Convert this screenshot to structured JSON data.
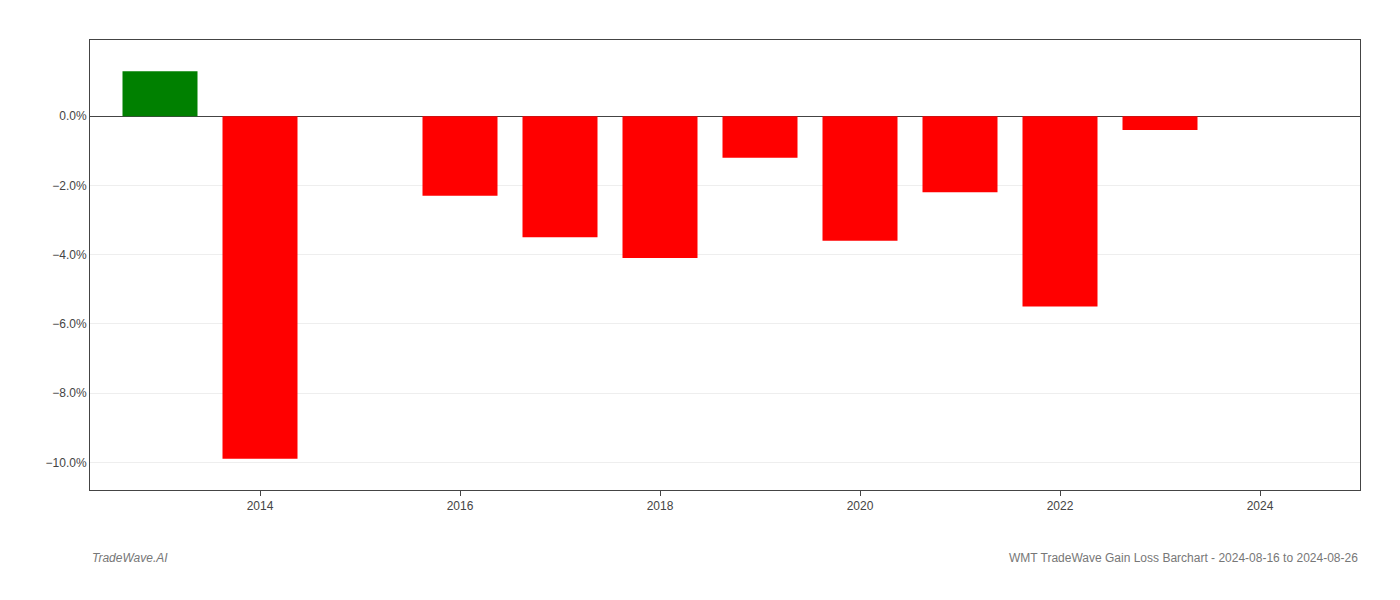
{
  "chart_data": {
    "type": "bar",
    "x": [
      2013,
      2014,
      2016,
      2017,
      2018,
      2019,
      2020,
      2021,
      2022,
      2023
    ],
    "values": [
      0.013,
      -0.099,
      -0.023,
      -0.035,
      -0.041,
      -0.012,
      -0.036,
      -0.022,
      -0.055,
      -0.004
    ],
    "colors": [
      "#008000",
      "#ff0000",
      "#ff0000",
      "#ff0000",
      "#ff0000",
      "#ff0000",
      "#ff0000",
      "#ff0000",
      "#ff0000",
      "#ff0000"
    ],
    "xlim": [
      2012.3,
      2025.0
    ],
    "xticks": [
      2014,
      2016,
      2018,
      2020,
      2022,
      2024
    ],
    "ylim": [
      -0.108,
      0.022
    ],
    "yticks": [
      {
        "value": 0.0,
        "label": "0.0%"
      },
      {
        "value": -0.02,
        "label": "−2.0%"
      },
      {
        "value": -0.04,
        "label": "−4.0%"
      },
      {
        "value": -0.06,
        "label": "−6.0%"
      },
      {
        "value": -0.08,
        "label": "−8.0%"
      },
      {
        "value": -0.1,
        "label": "−10.0%"
      }
    ],
    "grid": true,
    "annotations": [
      "TradeWave.AI",
      "WMT TradeWave Gain Loss Barchart - 2024-08-16 to 2024-08-26"
    ]
  }
}
